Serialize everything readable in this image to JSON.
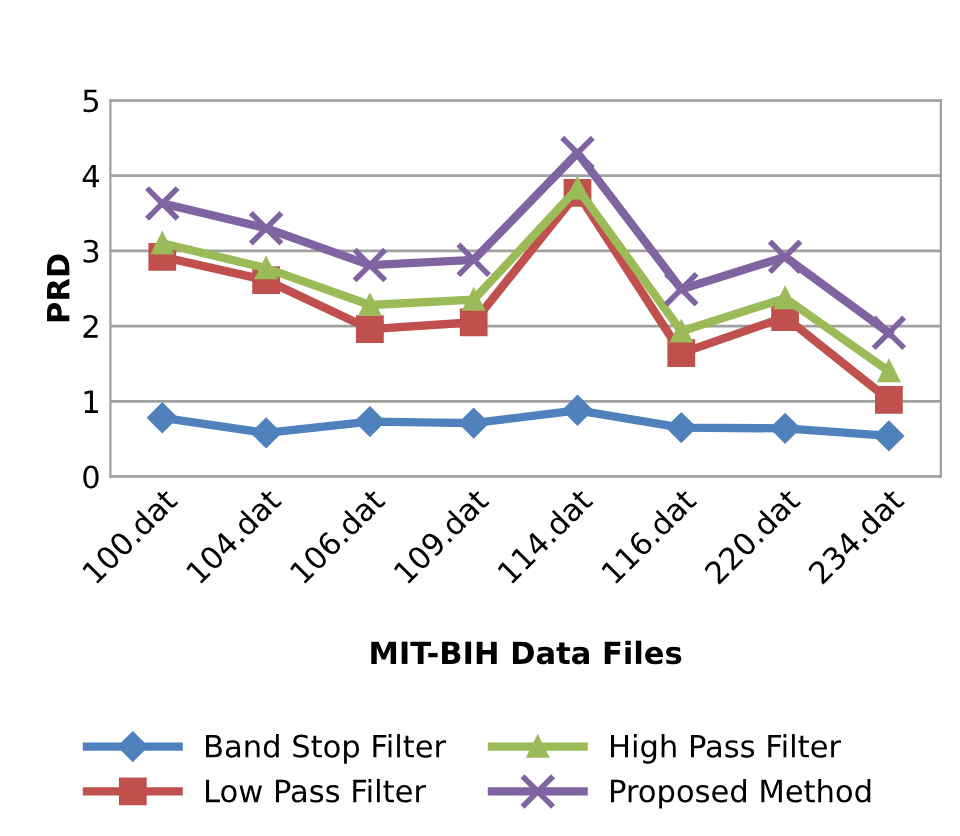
{
  "chart_data": {
    "type": "line",
    "xlabel": "MIT-BIH Data Files",
    "ylabel": "PRD",
    "categories": [
      "100.dat",
      "104.dat",
      "106.dat",
      "109.dat",
      "114.dat",
      "116.dat",
      "220.dat",
      "234.dat"
    ],
    "series": [
      {
        "name": "Band Stop Filter",
        "color": "#4f81bd",
        "marker": "diamond",
        "values": [
          0.78,
          0.58,
          0.73,
          0.71,
          0.88,
          0.65,
          0.64,
          0.54
        ]
      },
      {
        "name": "Low Pass Filter",
        "color": "#c0504d",
        "marker": "square",
        "values": [
          2.92,
          2.61,
          1.96,
          2.05,
          3.77,
          1.64,
          2.12,
          1.02
        ]
      },
      {
        "name": "High Pass Filter",
        "color": "#9bbb59",
        "marker": "triangle",
        "values": [
          3.1,
          2.77,
          2.28,
          2.35,
          3.83,
          1.93,
          2.37,
          1.4
        ]
      },
      {
        "name": "Proposed Method",
        "color": "#8064a2",
        "marker": "cross",
        "values": [
          3.63,
          3.3,
          2.81,
          2.88,
          4.3,
          2.49,
          2.92,
          1.91
        ]
      }
    ],
    "ylim": [
      0,
      5
    ],
    "yticks": [
      0,
      1,
      2,
      3,
      4,
      5
    ],
    "grid": "y",
    "legend": "bottom"
  }
}
